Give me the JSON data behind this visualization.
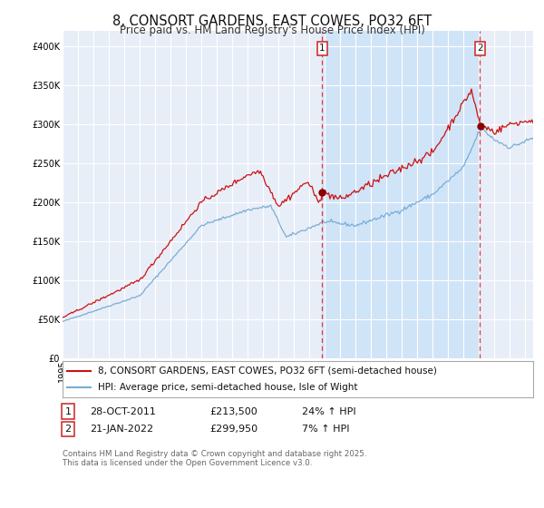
{
  "title": "8, CONSORT GARDENS, EAST COWES, PO32 6FT",
  "subtitle": "Price paid vs. HM Land Registry's House Price Index (HPI)",
  "legend_line1": "8, CONSORT GARDENS, EAST COWES, PO32 6FT (semi-detached house)",
  "legend_line2": "HPI: Average price, semi-detached house, Isle of Wight",
  "annotation1_label": "1",
  "annotation1_date": "28-OCT-2011",
  "annotation1_price": "£213,500",
  "annotation1_hpi": "24% ↑ HPI",
  "annotation1_year": 2011.82,
  "annotation1_value": 213500,
  "annotation2_label": "2",
  "annotation2_date": "21-JAN-2022",
  "annotation2_price": "£299,950",
  "annotation2_hpi": "7% ↑ HPI",
  "annotation2_year": 2022.05,
  "annotation2_value": 299950,
  "ylim": [
    0,
    420000
  ],
  "yticks": [
    0,
    50000,
    100000,
    150000,
    200000,
    250000,
    300000,
    350000,
    400000
  ],
  "xlim_start": 1995.0,
  "xlim_end": 2025.5,
  "background_color": "#ffffff",
  "plot_bg_color": "#e8eef8",
  "grid_color": "#ffffff",
  "hpi_line_color": "#7aadd4",
  "price_line_color": "#cc1111",
  "highlight_bg_color": "#d0e4f8",
  "dashed_line_color": "#ee3333",
  "footnote": "Contains HM Land Registry data © Crown copyright and database right 2025.\nThis data is licensed under the Open Government Licence v3.0.",
  "title_fontsize": 10.5,
  "subtitle_fontsize": 8.5,
  "tick_fontsize": 7,
  "legend_fontsize": 7.5,
  "annotation_fontsize": 8
}
